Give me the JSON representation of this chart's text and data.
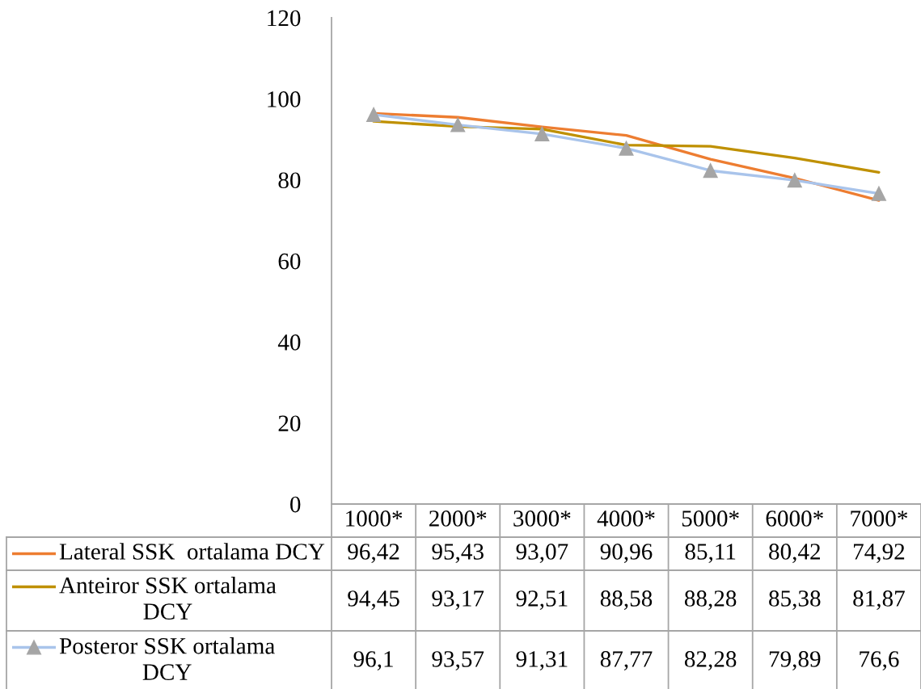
{
  "chart_data": {
    "type": "line",
    "categories": [
      "1000*",
      "2000*",
      "3000*",
      "4000*",
      "5000*",
      "6000*",
      "7000*"
    ],
    "ylim": [
      0,
      120
    ],
    "yticks": [
      0,
      20,
      40,
      60,
      80,
      100,
      120
    ],
    "grid": false,
    "legend": "bottom",
    "line_style": "solid",
    "series": [
      {
        "name": "Lateral SSK  ortalama DCY",
        "color": "#ed7d31",
        "marker": "none",
        "values": [
          96.42,
          95.43,
          93.07,
          90.96,
          85.11,
          80.42,
          74.92
        ],
        "value_labels": [
          "96,42",
          "95,43",
          "93,07",
          "90,96",
          "85,11",
          "80,42",
          "74,92"
        ]
      },
      {
        "name": "Anteiror SSK ortalama DCY",
        "color": "#bf9000",
        "marker": "none",
        "values": [
          94.45,
          93.17,
          92.51,
          88.58,
          88.28,
          85.38,
          81.87
        ],
        "value_labels": [
          "94,45",
          "93,17",
          "92,51",
          "88,58",
          "88,28",
          "85,38",
          "81,87"
        ]
      },
      {
        "name": "Posteror SSK ortalama DCY",
        "color": "#a9c4eb",
        "marker": "triangle",
        "colors": [
          "#a5a5a5",
          "#a5a5a5",
          "#a5a5a5",
          "#a5a5a5",
          "#a5a5a5",
          "#a5a5a5",
          "#a5a5a5"
        ],
        "values": [
          96.1,
          93.57,
          91.31,
          87.77,
          82.28,
          79.89,
          76.6
        ],
        "value_labels": [
          "96,1",
          "93,57",
          "91,31",
          "87,77",
          "82,28",
          "79,89",
          "76,6"
        ]
      }
    ]
  }
}
